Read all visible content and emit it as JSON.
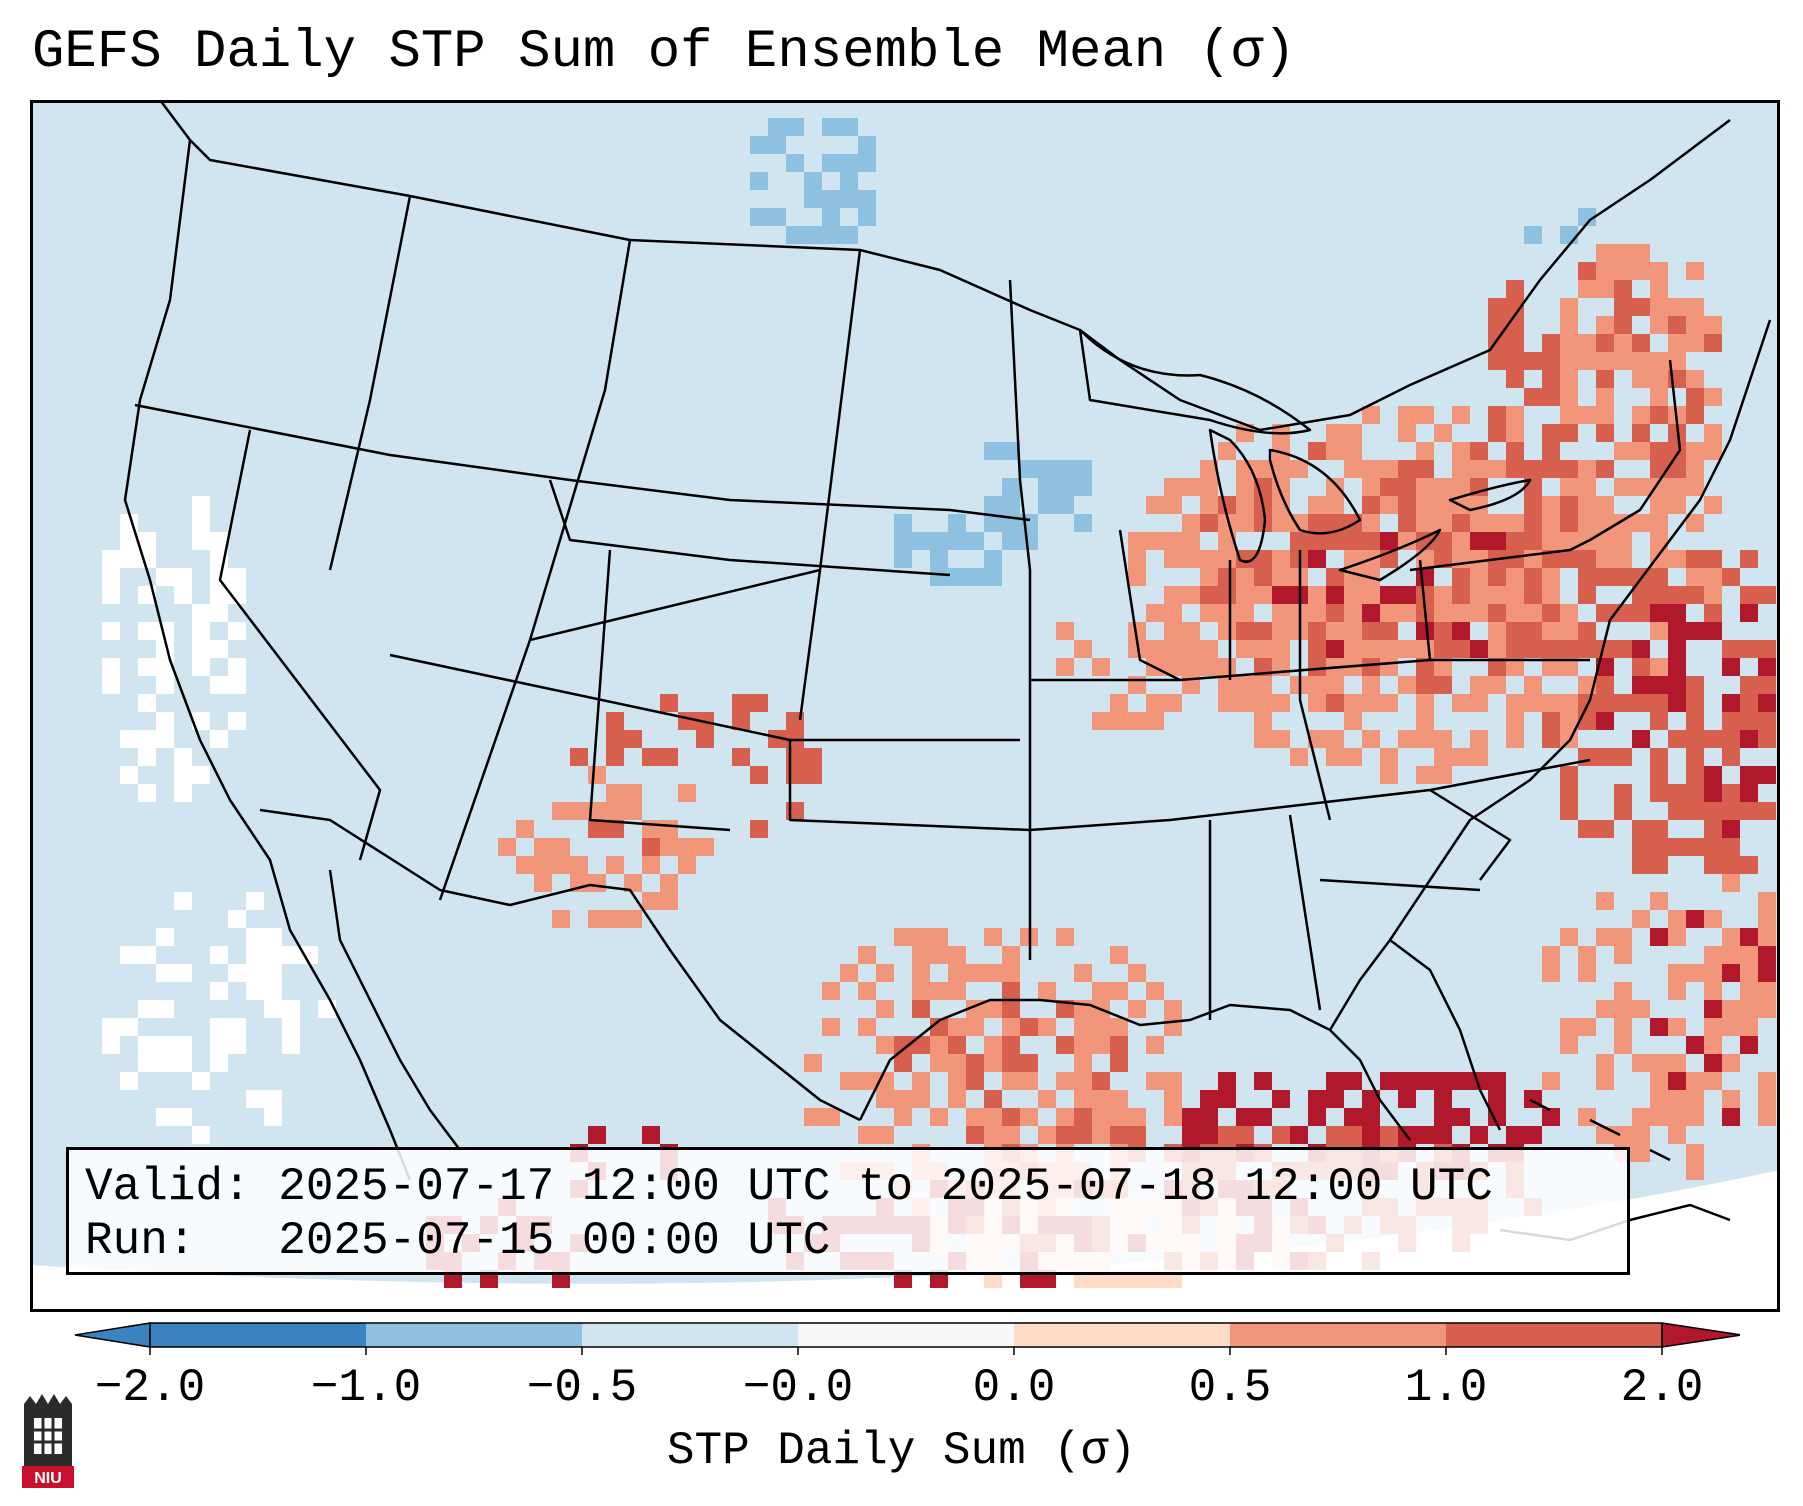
{
  "title": "GEFS Daily STP Sum of Ensemble Mean (σ)",
  "info": {
    "valid_line": "Valid: 2025-07-17 12:00 UTC to 2025-07-18 12:00 UTC",
    "run_line": "Run:   2025-07-15 00:00 UTC"
  },
  "colorbar": {
    "label": "STP Daily Sum (σ)",
    "ticks": [
      "−2.0",
      "−1.0",
      "−0.5",
      "−0.0",
      "0.0",
      "0.5",
      "1.0",
      "2.0"
    ],
    "colors": [
      "#3a83c0",
      "#8ec0e0",
      "#d1e5f0",
      "#f7f7f7",
      "#fddbc7",
      "#f1967a",
      "#d6604d",
      "#b2182b"
    ]
  },
  "map": {
    "background_color": "#d1e5f0",
    "field_colors": {
      "strong_negative": "#8ec0e0",
      "near_zero": "#ffffff",
      "light_positive": "#fddbc7",
      "moderate_positive": "#f1967a",
      "high_positive": "#d6604d",
      "extreme_positive": "#b2182b"
    }
  },
  "logo": {
    "text": "NIU"
  }
}
